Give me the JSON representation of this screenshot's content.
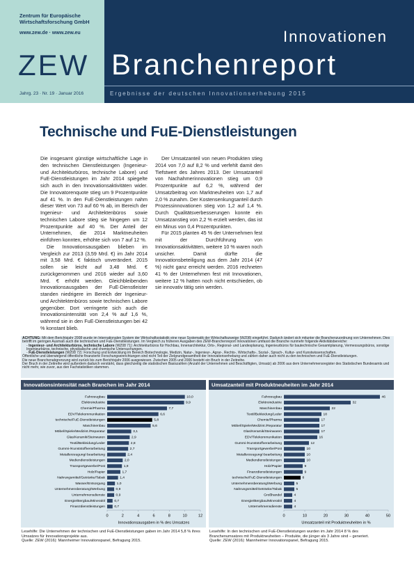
{
  "header": {
    "institute": "Zentrum für Europäische Wirtschaftsforschung GmbH",
    "urls": "www.zew.de · www.zew.eu",
    "logo": "ZEW",
    "series": "Innovationen",
    "title": "Branchenreport",
    "issue": "Jahrg. 23 · Nr. 19 · Januar 2016",
    "subtitle": "Ergebnisse der deutschen Innovationserhebung 2015"
  },
  "title": "Technische und FuE-Dienstleistungen",
  "body": {
    "paragraphs": [
      "Die insgesamt günstige wirtschaftliche Lage in den technischen Dienstleistungen (Ingenieur- und Architekturbüros, technische Labore) und FuE-Dienstleistungen im Jahr 2014 spiegelte sich auch in den Innovationsaktivitäten wider. Die Innovatorenquote stieg um 9 Prozentpunkte auf 41 %. In den FuE-Dienstleistungen nahm dieser Wert von 73 auf 60 % ab, im Bereich der Ingenieur- und Architektenbüros sowie technischen Labore stieg sie hingegen um 12 Prozentpunkte auf 40 %. Der Anteil der Unternehmen, die 2014 Marktneuheiten einführen konnten, erhöhte sich von 7 auf 12 %.",
      "Die Innovationsausgaben blieben im Vergleich zur 2013 (3,59 Mrd. €) im Jahr 2014 mit 3,58 Mrd. € faktisch unverändert. 2015 sollen sie leicht auf 3,48 Mrd. € zurückgenommen und 2016 wieder auf 3,60 Mrd. € erhöht werden. Gleichbleibenden Innovationsausgaben der FuE-Dienstleister standen niedrigere im Bereich der Ingenieur- und Architektenbüros sowie technischen Labore gegenüber. Dort verringerte sich auch die Innovationsintensität von 2,4 % auf 1,6 %, während sie in den FuE-Dienstleistungen bei 42 % konstant blieb.",
      "Der Umsatzanteil von neuen Produkten stieg 2014 von 7,0 auf 8,2 % und verfehlt damit den Tiefstwert des Jahres 2013. Der Umsatzanteil von Nachahmerinnovationen stieg um 0,9 Prozentpunkte auf 6,2 %, während der Umsatzbeitrag von Marktneuheiten von 1,7 auf 2,0 % zunahm. Der Kostensenkungsanteil durch Prozessinnovationen stieg von 1,2 auf 1,4 %. Durch Qualitätsverbesserungen konnte ein Umsatzanstieg von 2,2 % erzielt werden, das ist ein Minus von 0,4 Prozentpunkten.",
      "Für 2015 planten 45 % der Unternehmen fest mit der Durchführung von Innovationsaktivitäten, weitere 10 % waren noch unsicher. Damit dürfte die Innovationsbeteiligung aus dem Jahr 2014 (47 %) nicht ganz erreicht werden. 2016 rechneten 41 % der Unternehmen fest mit Innovationen, weitere 12 % hatten noch nicht entschieden, ob sie innovativ tätig sein werden."
    ]
  },
  "note": {
    "lead": "ACHTUNG:",
    "intro": "Mit dem Berichtsjahr 2008 wurde im Internationalen System der Wirtschaftsstatistik eine neue Systematik der Wirtschaftszweige (WZ08) eingeführt. Dadurch ändert sich mitunter die Branchenzuordnung von Unternehmen. Dies betrifft im geringen Ausmaß auch die technischen und FuE-Dienstleistungen. Im Vergleich zu früheren Ausgaben des ZEW-Branchenreport Innovationen umfasst die Branche nunmehr folgende Aktivitätsbereiche:",
    "items": [
      {
        "term": "Ingenieur- und Architekturbüros, technische Labore",
        "text": "(WZ08 71): Architekturbüros für Hochbau, Innenarchitektur, Orts-, Regional- und Landesplanung, Ingenieurbüros für bautechnische Gesamtplanung, Vermessungsbüros, sonstige Ingenieurbüros, technische, physikalische und chemische Untersuchungen."
      },
      {
        "term": "FuE-Dienstleistungen",
        "text": "(WZ08 72): Forschung und Entwicklung im Bereich Biotechnologie, Medizin, Natur-, Ingenieur-, Agrar-, Rechts-, Wirtschafts-, Sozial-, Sprach-, Kultur- und Kunstwissenschaften."
      }
    ],
    "paragraphs": [
      "Öffentliche und überwiegend öffentliche finanzierte Forschungseinrichtungen sind nicht Teil der Zielgrundgesamtheit der Innovationserhebung und zählen daher auch nicht zu den technischen und FuE-Dienstleistungen.",
      "Die neue Branchenabgrenzung wird zurück bis zum Berichtsjahr 2006 ausgewiesen. Zwischen 2005 und 2006 besteht ein Bruch in der Zeitreihe.",
      "Der Bruch in der Zeitreihe wird außerdem dadurch verstärkt, dass gleichzeitig die statistischen Basiszahlen (Anzahl der Unternehmen und Beschäftigten, Umsatz) ab 2006 aus dem Unternehmensregister des Statistischen Bundesamts und nicht mehr, wie zuvor, aus den Fachstatistiken stammen."
    ]
  },
  "chart_data": [
    {
      "type": "bar",
      "orientation": "horizontal",
      "title": "Innovationsintensität nach Branchen im Jahr 2014",
      "categories": [
        "Fahrzeugbau",
        "Elektroindustrie",
        "Chemie/Pharma",
        "EDV/Telekommunikation",
        "technische/FuE-Dienstleistungen",
        "Maschinenbau",
        "Möbel/Spiele/Medizint./Reparatur",
        "Glas/Keramik/Steinwaren",
        "Textil/Bekleidung/Leder",
        "Gummi-/Kunststoffverarbeitung",
        "Metallerzeugung/-bearbeitung",
        "Mediendienstleistungen",
        "Transportgewerbe/Post",
        "Holz/Papier",
        "Nahrungsmittel/Getränke/Tabak",
        "Wasser/Entsorgung",
        "Unternehmensberatung/Werbung",
        "Unternehmensdienste",
        "Energie/Bergbau/Mineralöl",
        "Finanzdienstleistungen"
      ],
      "values": [
        10.0,
        9.9,
        7.7,
        6.6,
        5.8,
        5.6,
        3.1,
        2.9,
        2.8,
        2.7,
        2.4,
        2.0,
        1.9,
        1.7,
        1.4,
        1.0,
        0.9,
        0.9,
        0.7,
        0.7
      ],
      "value_labels": [
        "10,0",
        "9,9",
        "7,7",
        "6,6",
        "5,8",
        "5,6",
        "3,1",
        "2,9",
        "2,8",
        "2,7",
        "2,4",
        "2,0",
        "1,9",
        "1,7",
        "1,4",
        "1,0",
        "0,9",
        "0,9",
        "0,7",
        "0,7"
      ],
      "colors": [
        "#2c4467",
        "#2c4467",
        "#2c4467",
        "#2c4467",
        "#000000",
        "#2c4467",
        "#2c4467",
        "#2c4467",
        "#2c4467",
        "#2c4467",
        "#2c4467",
        "#2c4467",
        "#2c4467",
        "#2c4467",
        "#2c4467",
        "#2c4467",
        "#2c4467",
        "#2c4467",
        "#2c4467",
        "#2c4467"
      ],
      "xlim": [
        0,
        12
      ],
      "xticks": [
        0,
        2,
        4,
        6,
        8,
        10,
        12
      ],
      "xlabel": "Innovationsausgaben in % des Umsatzes"
    },
    {
      "type": "bar",
      "orientation": "horizontal",
      "title": "Umsatzanteil mit Produktneuheiten im Jahr 2014",
      "categories": [
        "Fahrzeugbau",
        "Elektroindustrie",
        "Maschinenbau",
        "Textil/Bekleidung/Leder",
        "Chemie/Pharma",
        "Möbel/Spiele/Medizint./Reparatur",
        "Glas/Keramik/Steinwaren",
        "EDV/Telekommunikation",
        "Gummi-/Kunststoffverarbeitung",
        "Transportgewerbe/Post",
        "Metallerzeugung/-bearbeitung",
        "Mediendienstleistungen",
        "Holz/Papier",
        "Finanzdienstleistungen",
        "technische/FuE-Dienstleistungen",
        "Unternehmensberatung/Werbung",
        "Nahrungsmittel/Getränke/Tabak",
        "Großhandel",
        "Energie/Bergbau/Mineralöl",
        "Unternehmensdienste"
      ],
      "values": [
        46,
        32,
        22,
        18,
        17,
        17,
        17,
        16,
        12,
        10,
        10,
        10,
        9,
        9,
        8,
        5,
        5,
        4,
        4,
        4
      ],
      "colors": [
        "#2c4467",
        "#2c4467",
        "#2c4467",
        "#2c4467",
        "#2c4467",
        "#2c4467",
        "#2c4467",
        "#2c4467",
        "#2c4467",
        "#2c4467",
        "#2c4467",
        "#2c4467",
        "#2c4467",
        "#2c4467",
        "#000000",
        "#2c4467",
        "#2c4467",
        "#2c4467",
        "#2c4467",
        "#2c4467"
      ],
      "xlim": [
        0,
        50
      ],
      "xticks": [
        0,
        10,
        20,
        30,
        40,
        50
      ],
      "xlabel": "Umsatzanteil mit Produktneuheiten in %"
    }
  ],
  "captions": [
    {
      "reading": "Lesehilfe: Die Unternehmen der technischen und FuE-Dienstleistungen gaben im Jahr 2014 5,8 % ihres Umsatzes für Innovationsprojekte aus.",
      "source": "Quelle: ZEW (2016): Mannheimer Innovationspanel, Befragung 2015."
    },
    {
      "reading": "Lesehilfe: In den technischen und FuE-Dienstleistungen wurden im Jahr 2014 8 % des Branchenumsatzes mit Produktneuheiten – Produkte, die jünger als 3 Jahre sind – generiert.",
      "source": "Quelle: ZEW (2016): Mannheimer Innovationspanel, Befragung 2015."
    }
  ]
}
